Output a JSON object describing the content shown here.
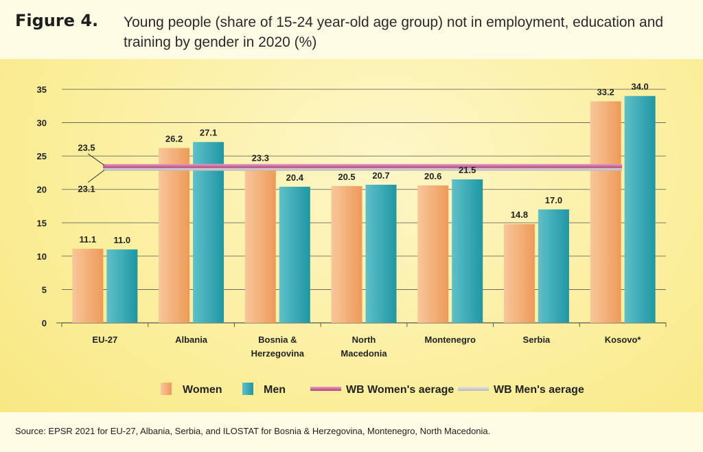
{
  "figure": {
    "label": "Figure 4.",
    "title": "Young people (share of 15-24 year-old age group) not in employment, education and training by gender in 2020 (%)",
    "source": "Source: EPSR 2021 for EU-27, Albania, Serbia, and ILOSTAT for Bosnia & Herzegovina, Montenegro, North Macedonia."
  },
  "colors": {
    "women": "#ee9a5a",
    "men": "#1e97a4",
    "wb_women_avg": "#b5437d",
    "wb_men_avg": "#b8b8b8",
    "grid": "#555555"
  },
  "chart_data": {
    "type": "bar",
    "categories": [
      "EU-27",
      "Albania",
      "Bosnia & Herzegovina",
      "North Macedonia",
      "Montenegro",
      "Serbia",
      "Kosovo*"
    ],
    "category_lines": [
      [
        "EU-27"
      ],
      [
        "Albania"
      ],
      [
        "Bosnia &",
        "Herzegovina"
      ],
      [
        "North",
        "Macedonia"
      ],
      [
        "Montenegro"
      ],
      [
        "Serbia"
      ],
      [
        "Kosovo*"
      ]
    ],
    "series": [
      {
        "name": "Women",
        "values": [
          11.1,
          26.2,
          23.3,
          20.5,
          20.6,
          14.8,
          33.2
        ],
        "labels": [
          "11.1",
          "26.2",
          "23.3",
          "20.5",
          "20.6",
          "14.8",
          "33.2"
        ]
      },
      {
        "name": "Men",
        "values": [
          11.0,
          27.1,
          20.4,
          20.7,
          21.5,
          17.0,
          34.0
        ],
        "labels": [
          "11.0",
          "27.1",
          "20.4",
          "20.7",
          "21.5",
          "17.0",
          "34.0"
        ]
      }
    ],
    "reference_lines": [
      {
        "name": "WB Women's aerage",
        "value": 23.5,
        "label": "23.5"
      },
      {
        "name": "WB Men's aerage",
        "value": 23.1,
        "label": "23.1"
      }
    ],
    "yticks": [
      "0",
      "5",
      "10",
      "15",
      "20",
      "25",
      "30",
      "35"
    ],
    "ylim": [
      0,
      35
    ],
    "grid": true,
    "legend_position": "bottom"
  }
}
